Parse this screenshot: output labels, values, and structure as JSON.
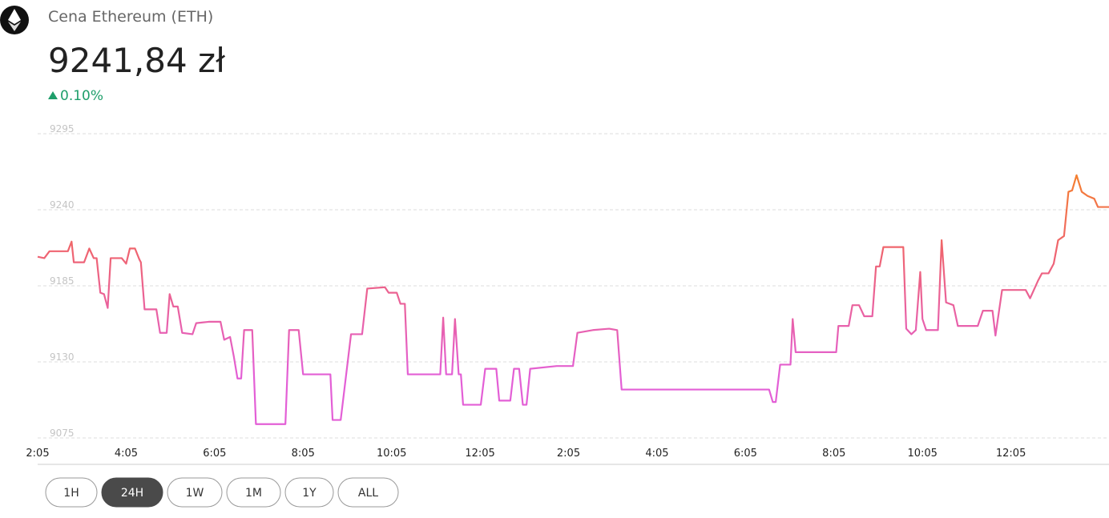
{
  "header": {
    "title": "Cena Ethereum (ETH)",
    "price": "9241,84 zł",
    "change": "0.10%"
  },
  "chart_data": {
    "type": "line",
    "x": [
      0,
      9,
      16,
      41,
      46,
      49,
      63,
      70,
      76,
      80,
      85,
      90,
      95,
      99,
      114,
      120,
      125,
      132,
      138,
      140,
      145,
      161,
      166,
      175,
      179,
      184,
      190,
      196,
      210,
      215,
      232,
      248,
      253,
      261,
      266,
      271,
      276,
      280,
      291,
      296,
      336,
      341,
      354,
      360,
      397,
      400,
      411,
      425,
      440,
      447,
      471,
      476,
      487,
      492,
      498,
      502,
      546,
      550,
      554,
      562,
      566,
      571,
      574,
      577,
      601,
      607,
      622,
      626,
      641,
      646,
      653,
      658,
      663,
      668,
      704,
      726,
      732,
      753,
      775,
      786,
      792,
      992,
      997,
      1001,
      1007,
      1021,
      1024,
      1028,
      1083,
      1086,
      1100,
      1105,
      1114,
      1121,
      1132,
      1137,
      1142,
      1147,
      1174,
      1178,
      1185,
      1191,
      1197,
      1200,
      1205,
      1221,
      1226,
      1232,
      1242,
      1248,
      1275,
      1282,
      1295,
      1299,
      1308,
      1340,
      1346,
      1357,
      1362,
      1371,
      1378,
      1384,
      1392,
      1398,
      1403,
      1409,
      1416,
      1424,
      1433,
      1438,
      1453
    ],
    "values": [
      9206,
      9205,
      9210,
      9210,
      9217,
      9202,
      9202,
      9212,
      9205,
      9205,
      9180,
      9179,
      9169,
      9205,
      9205,
      9201,
      9212,
      9212,
      9204,
      9202,
      9168,
      9168,
      9151,
      9151,
      9179,
      9170,
      9170,
      9151,
      9150,
      9158,
      9159,
      9159,
      9146,
      9148,
      9134,
      9118,
      9118,
      9153,
      9153,
      9085,
      9085,
      9153,
      9153,
      9121,
      9121,
      9088,
      9088,
      9150,
      9150,
      9183,
      9184,
      9180,
      9180,
      9172,
      9172,
      9121,
      9121,
      9162,
      9121,
      9121,
      9161,
      9121,
      9121,
      9099,
      9099,
      9125,
      9125,
      9102,
      9102,
      9125,
      9125,
      9099,
      9099,
      9125,
      9127,
      9127,
      9151,
      9153,
      9154,
      9153,
      9110,
      9110,
      9101,
      9101,
      9128,
      9128,
      9161,
      9137,
      9137,
      9156,
      9156,
      9171,
      9171,
      9163,
      9163,
      9199,
      9199,
      9213,
      9213,
      9154,
      9150,
      9153,
      9195,
      9161,
      9153,
      9153,
      9218,
      9173,
      9171,
      9156,
      9156,
      9167,
      9167,
      9149,
      9182,
      9182,
      9176,
      9189,
      9194,
      9194,
      9201,
      9218,
      9221,
      9253,
      9254,
      9265,
      9253,
      9250,
      9248,
      9242,
      9242
    ],
    "colors": [
      "#f5822a",
      "#ef6470",
      "#e35fd6"
    ],
    "ylim": [
      9075,
      9295
    ],
    "yticks": [
      9075,
      9130,
      9185,
      9240,
      9295
    ],
    "grid": true,
    "xlim": [
      0,
      1453
    ],
    "xticks": [
      {
        "value": 0,
        "label": "2:05"
      },
      {
        "value": 120,
        "label": "4:05"
      },
      {
        "value": 240,
        "label": "6:05"
      },
      {
        "value": 360,
        "label": "8:05"
      },
      {
        "value": 480,
        "label": "10:05"
      },
      {
        "value": 600,
        "label": "12:05"
      },
      {
        "value": 720,
        "label": "2:05"
      },
      {
        "value": 840,
        "label": "4:05"
      },
      {
        "value": 960,
        "label": "6:05"
      },
      {
        "value": 1080,
        "label": "8:05"
      },
      {
        "value": 1200,
        "label": "10:05"
      },
      {
        "value": 1320,
        "label": "12:05"
      }
    ]
  },
  "range_buttons": [
    "1H",
    "24H",
    "1W",
    "1M",
    "1Y",
    "ALL"
  ],
  "selected_range_index": 1
}
